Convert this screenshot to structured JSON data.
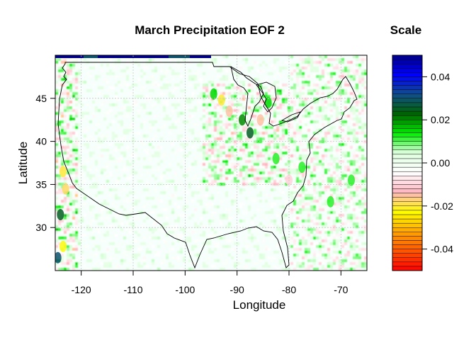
{
  "chart_data": [
    {
      "type": "heatmap",
      "title": "March Precipitation EOF 2",
      "xlabel": "Longitude",
      "ylabel": "Latitude",
      "xlim": [
        -125,
        -65
      ],
      "ylim": [
        25,
        50
      ],
      "xticks": [
        -120,
        -110,
        -100,
        -90,
        -80,
        -70
      ],
      "yticks": [
        30,
        35,
        40,
        45
      ],
      "xtick_labels": [
        "-120",
        "-110",
        "-100",
        "-90",
        "-80",
        "-70"
      ],
      "ytick_labels": [
        "30",
        "35",
        "40",
        "45"
      ],
      "grid": true,
      "basemap": "continental United States outline",
      "field_range": [
        -0.05,
        0.05
      ],
      "features": [
        {
          "lon": -123.5,
          "lat": 36.5,
          "value": -0.02
        },
        {
          "lon": -123.0,
          "lat": 34.5,
          "value": -0.018
        },
        {
          "lon": -124.0,
          "lat": 31.5,
          "value": 0.025
        },
        {
          "lon": -123.5,
          "lat": 27.8,
          "value": -0.022
        },
        {
          "lon": -124.5,
          "lat": 26.5,
          "value": 0.03
        },
        {
          "lon": -120.0,
          "lat": 49.7,
          "value": 0.05
        },
        {
          "lon": -94.5,
          "lat": 45.5,
          "value": 0.015
        },
        {
          "lon": -93.0,
          "lat": 44.8,
          "value": -0.02
        },
        {
          "lon": -91.5,
          "lat": 43.5,
          "value": -0.015
        },
        {
          "lon": -89.0,
          "lat": 42.5,
          "value": 0.02
        },
        {
          "lon": -87.5,
          "lat": 41.0,
          "value": 0.025
        },
        {
          "lon": -85.5,
          "lat": 42.5,
          "value": -0.015
        },
        {
          "lon": -84.0,
          "lat": 44.5,
          "value": 0.015
        },
        {
          "lon": -82.5,
          "lat": 38.0,
          "value": 0.012
        },
        {
          "lon": -80.0,
          "lat": 35.5,
          "value": -0.01
        },
        {
          "lon": -77.5,
          "lat": 37.0,
          "value": 0.012
        },
        {
          "lon": -72.0,
          "lat": 33.0,
          "value": 0.012
        },
        {
          "lon": -68.0,
          "lat": 35.5,
          "value": 0.012
        }
      ]
    },
    {
      "type": "heatmap",
      "title": "Scale",
      "ylim": [
        -0.05,
        0.05
      ],
      "yticks": [
        -0.04,
        -0.02,
        0.0,
        0.02,
        0.04
      ],
      "ytick_labels": [
        "-0.04",
        "-0.02",
        "0.00",
        "0.02",
        "0.04"
      ],
      "bins": 50,
      "colors": [
        "#ff0000",
        "#ff5500",
        "#ffa500",
        "#ffff00",
        "#ffb6c1",
        "#ffffff",
        "#e0ffe0",
        "#00ee00",
        "#006400",
        "#104e8b",
        "#0000ff",
        "#00008b"
      ]
    }
  ]
}
